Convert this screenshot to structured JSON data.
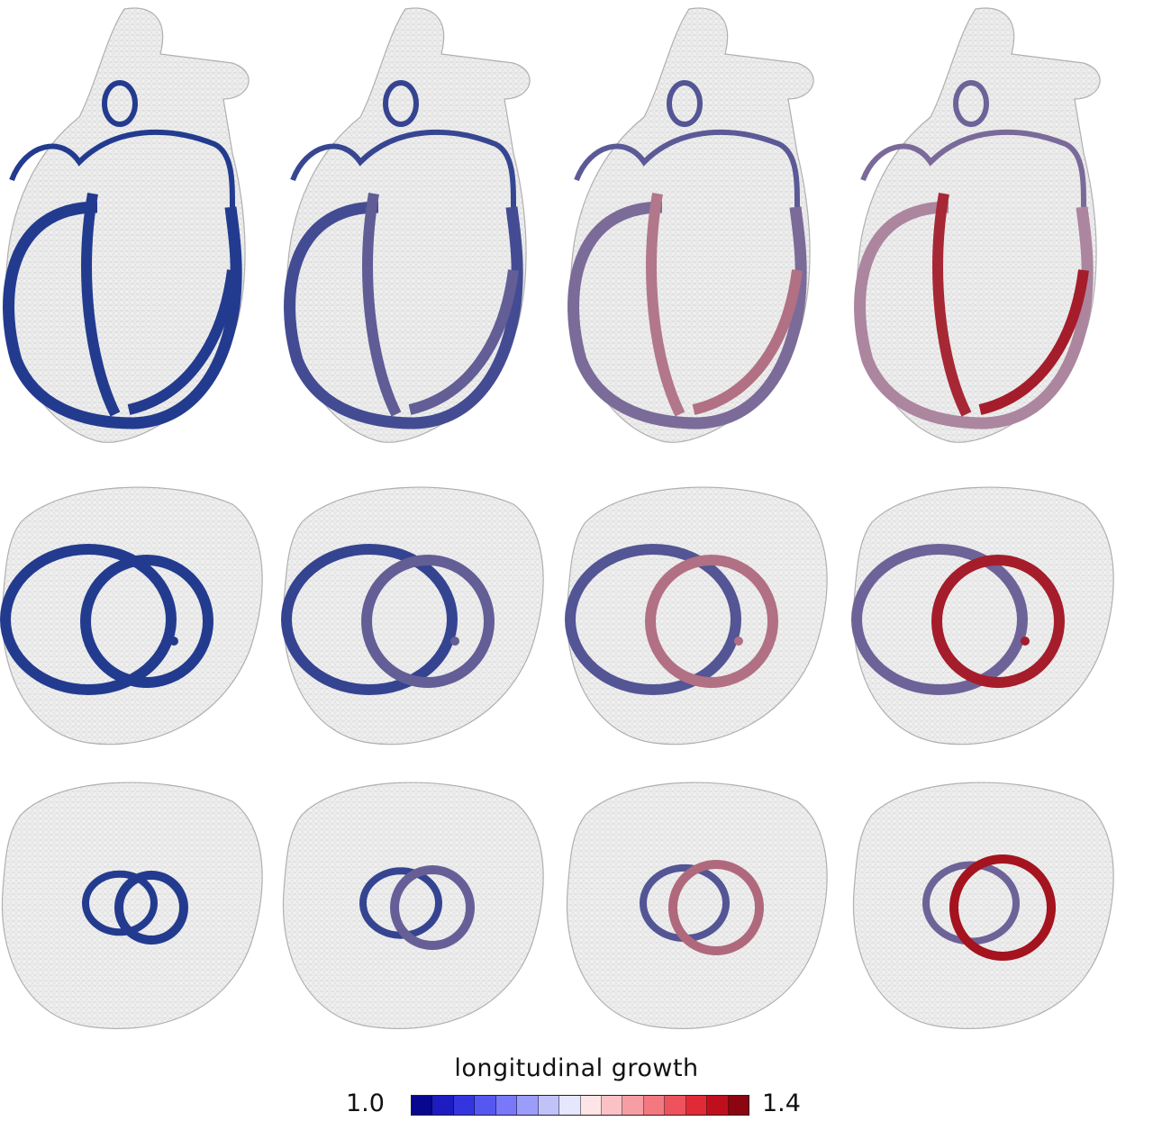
{
  "legend": {
    "title": "longitudinal growth",
    "min_label": "1.0",
    "max_label": "1.4",
    "min_value": 1.0,
    "max_value": 1.4,
    "steps": 16,
    "colors": [
      "#08088f",
      "#1c1cc0",
      "#3535e0",
      "#5656f0",
      "#7878f8",
      "#9c9cfa",
      "#c2c2fb",
      "#e6e6fc",
      "#fde4e6",
      "#fbc2c6",
      "#f79ea4",
      "#f37880",
      "#ee525c",
      "#e02a36",
      "#c00f1c",
      "#8c0510"
    ]
  },
  "panels": {
    "rows": [
      "long-axis",
      "short-axis-basal",
      "short-axis-mid"
    ],
    "growth_levels": [
      0.0,
      0.2,
      0.55,
      0.85
    ],
    "mesh_color": "#b4b4b4",
    "tissue_low": "#233b8f",
    "tissue_high": "#a30d18"
  }
}
